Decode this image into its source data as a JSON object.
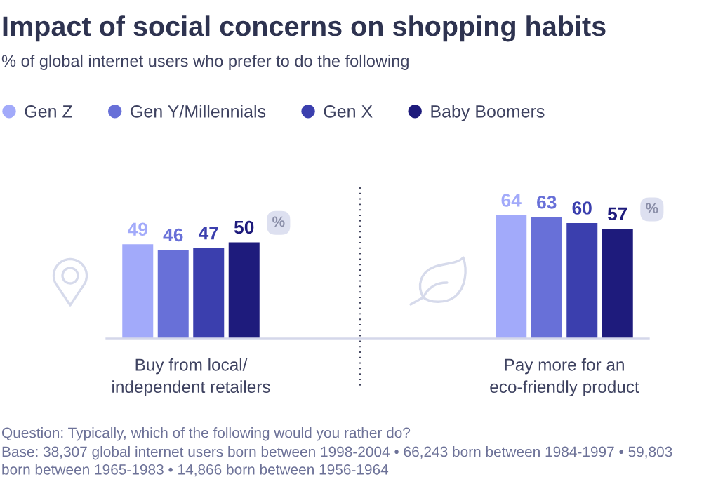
{
  "chart_data": {
    "type": "bar",
    "title": "Impact of social concerns on shopping habits",
    "subtitle": "% of global internet users who prefer to do the following",
    "categories": [
      "Buy from local/\nindependent retailers",
      "Pay more for an\neco-friendly product"
    ],
    "series": [
      {
        "name": "Gen Z",
        "color": "#a2aafa",
        "values": [
          49,
          64
        ]
      },
      {
        "name": "Gen Y/Millennials",
        "color": "#6870d8",
        "values": [
          46,
          63
        ]
      },
      {
        "name": "Gen X",
        "color": "#3b3fae",
        "values": [
          47,
          60
        ]
      },
      {
        "name": "Baby Boomers",
        "color": "#1e1b7c",
        "values": [
          50,
          57
        ]
      }
    ],
    "ylabel": "%",
    "data_labels": true,
    "legend": "top",
    "tick_labels": "x",
    "annotations": [
      "Question: Typically, which of the following would you rather do?",
      "Base: 38,307 global internet users born between 1998-2004 • 66,243 born between 1984-1997 • 59,803 born between 1965-1983 • 14,866 born between 1956-1964"
    ]
  }
}
